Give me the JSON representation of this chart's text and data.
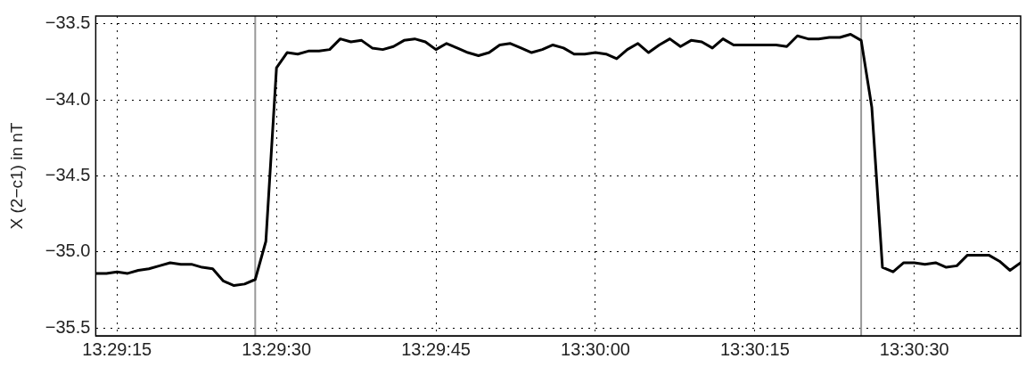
{
  "chart_data": {
    "type": "line",
    "ylabel": "X (2−c1) in nT",
    "x": [
      13.486944,
      13.487222,
      13.4875,
      13.487778,
      13.488056,
      13.488333,
      13.488611,
      13.488889,
      13.489167,
      13.489444,
      13.489722,
      13.49,
      13.490278,
      13.490556,
      13.490833,
      13.491111,
      13.491389,
      13.491667,
      13.491944,
      13.492222,
      13.4925,
      13.492778,
      13.493056,
      13.493333,
      13.493611,
      13.493889,
      13.494167,
      13.494444,
      13.494722,
      13.495,
      13.495278,
      13.495556,
      13.495833,
      13.496111,
      13.496389,
      13.496667,
      13.496944,
      13.497222,
      13.4975,
      13.497778,
      13.498056,
      13.498333,
      13.498611,
      13.498889,
      13.499167,
      13.499444,
      13.499722,
      13.5,
      13.500278,
      13.500556,
      13.500833,
      13.501111,
      13.501389,
      13.501667,
      13.501944,
      13.502222,
      13.5025,
      13.502778,
      13.503056,
      13.503333,
      13.503611,
      13.503889,
      13.504167,
      13.504444,
      13.504722,
      13.505,
      13.505278,
      13.505556,
      13.505833,
      13.506111,
      13.506389,
      13.506667,
      13.506944,
      13.507222,
      13.5075,
      13.507778,
      13.508056,
      13.508333,
      13.508611,
      13.508889,
      13.509167,
      13.509444,
      13.509722,
      13.51,
      13.510278,
      13.510556,
      13.510833,
      13.511111
    ],
    "series": [
      {
        "color": "#000000",
        "values": [
          -35.14,
          -35.14,
          -35.13,
          -35.14,
          -35.12,
          -35.11,
          -35.09,
          -35.07,
          -35.08,
          -35.08,
          -35.1,
          -35.11,
          -35.19,
          -35.22,
          -35.21,
          -35.18,
          -34.93,
          -33.79,
          -33.69,
          -33.7,
          -33.68,
          -33.68,
          -33.67,
          -33.6,
          -33.62,
          -33.61,
          -33.66,
          -33.67,
          -33.65,
          -33.61,
          -33.6,
          -33.62,
          -33.67,
          -33.63,
          -33.66,
          -33.69,
          -33.71,
          -33.69,
          -33.64,
          -33.63,
          -33.66,
          -33.69,
          -33.67,
          -33.64,
          -33.66,
          -33.7,
          -33.7,
          -33.69,
          -33.7,
          -33.73,
          -33.67,
          -33.63,
          -33.69,
          -33.64,
          -33.6,
          -33.65,
          -33.61,
          -33.62,
          -33.66,
          -33.6,
          -33.64,
          -33.64,
          -33.64,
          -33.64,
          -33.64,
          -33.65,
          -33.58,
          -33.6,
          -33.6,
          -33.59,
          -33.59,
          -33.57,
          -33.61,
          -34.05,
          -35.1,
          -35.13,
          -35.07,
          -35.07,
          -35.08,
          -35.07,
          -35.1,
          -35.09,
          -35.02,
          -35.02,
          -35.02,
          -35.06,
          -35.12,
          -35.07
        ]
      }
    ],
    "xlim": [
      13.486944,
      13.511111
    ],
    "xticks": [
      {
        "value": 13.4875,
        "label": "13:29:15"
      },
      {
        "value": 13.491667,
        "label": "13:29:30"
      },
      {
        "value": 13.495833,
        "label": "13:29:45"
      },
      {
        "value": 13.5,
        "label": "13:30:00"
      },
      {
        "value": 13.504167,
        "label": "13:30:15"
      },
      {
        "value": 13.508333,
        "label": "13:30:30"
      }
    ],
    "ylim": [
      -35.55,
      -33.45
    ],
    "yticks": [
      {
        "value": -35.5,
        "label": "−35.5"
      },
      {
        "value": -35,
        "label": "−35.0"
      },
      {
        "value": -34.5,
        "label": "−34.5"
      },
      {
        "value": -34,
        "label": "−34.0"
      },
      {
        "value": -33.5,
        "label": "−33.5"
      }
    ],
    "ref_lines": [
      {
        "axis": "x",
        "value": 13.491111,
        "color": "#999999"
      },
      {
        "axis": "x",
        "value": 13.506944,
        "color": "#999999"
      }
    ],
    "grid": true,
    "legend": false,
    "marker": "none",
    "line_style": "solid"
  }
}
